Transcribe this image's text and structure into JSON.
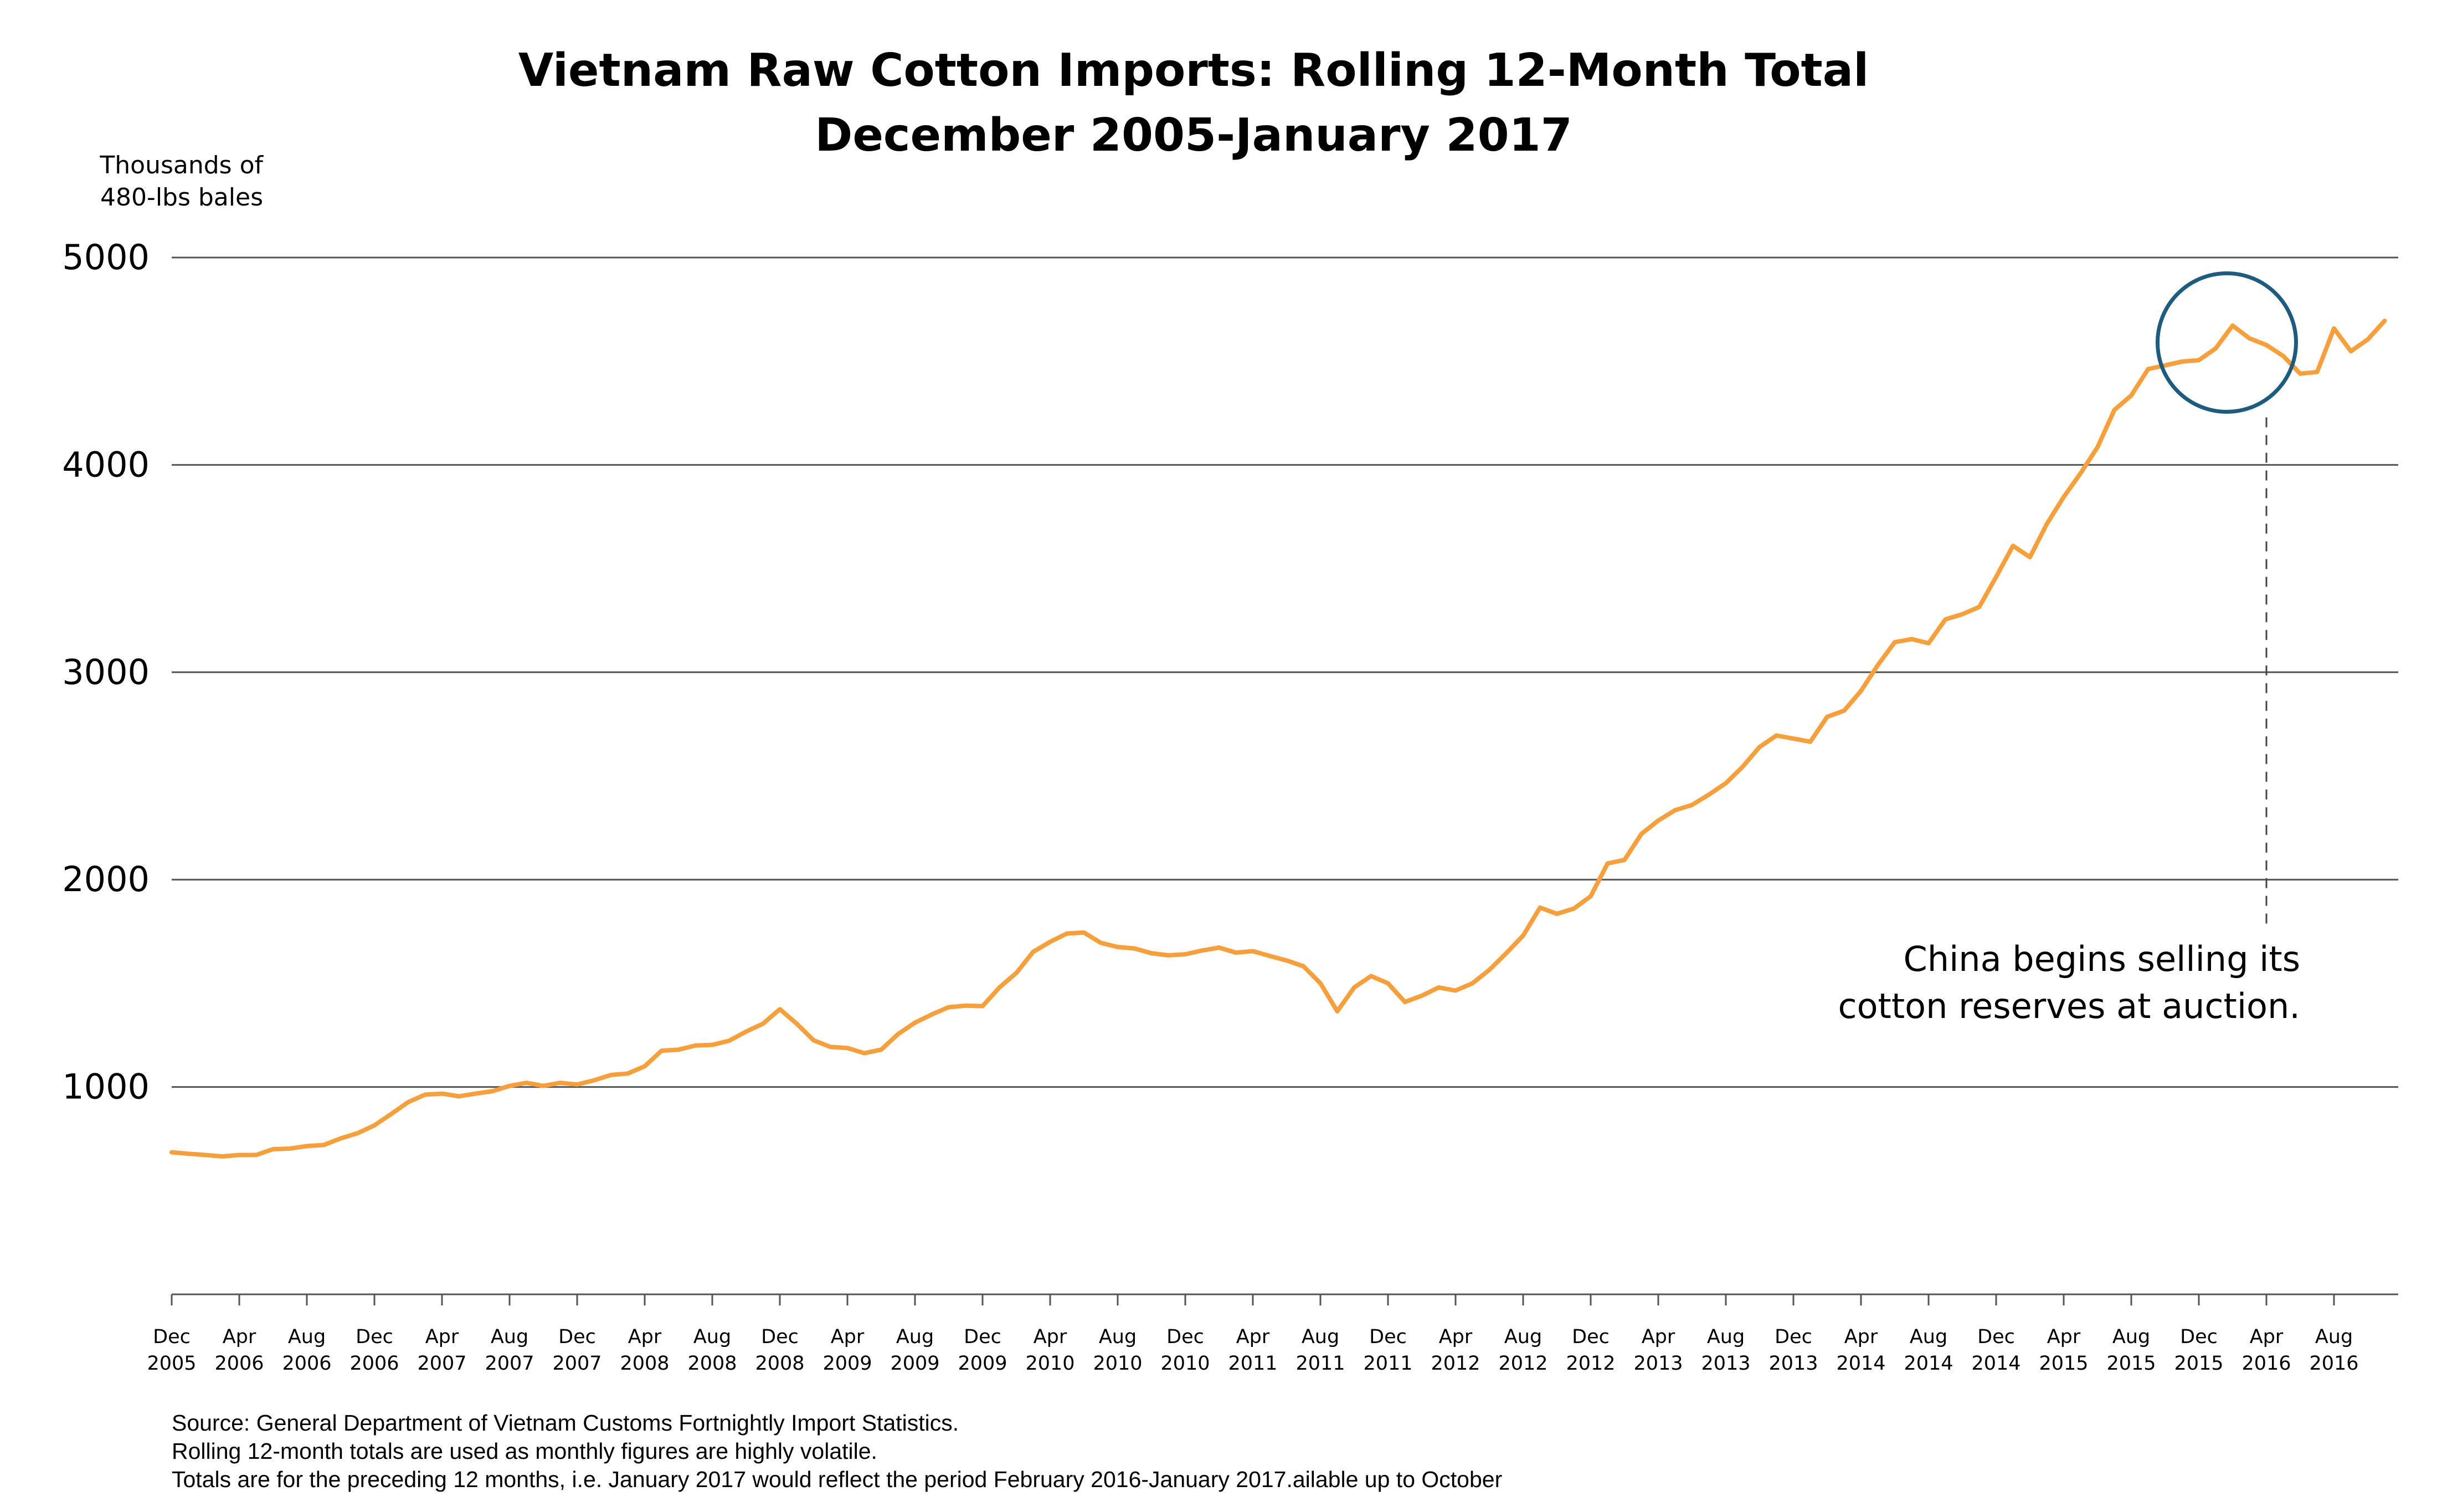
{
  "chart_data": {
    "type": "line",
    "title": "Vietnam Raw Cotton Imports: Rolling 12-Month Total",
    "subtitle": "December 2005-January 2017",
    "ylabel_lines": [
      "Thousands of",
      "480-lbs bales"
    ],
    "ylim": [
      0,
      5000
    ],
    "yticks": [
      "1000",
      "2000",
      "3000",
      "4000",
      "5000"
    ],
    "grid": true,
    "line_color": "#F5A03C",
    "highlight_color": "#1D5C7E",
    "xticks": [
      {
        "month": "Dec",
        "year": "2005"
      },
      {
        "month": "Apr",
        "year": "2006"
      },
      {
        "month": "Aug",
        "year": "2006"
      },
      {
        "month": "Dec",
        "year": "2006"
      },
      {
        "month": "Apr",
        "year": "2007"
      },
      {
        "month": "Aug",
        "year": "2007"
      },
      {
        "month": "Dec",
        "year": "2007"
      },
      {
        "month": "Apr",
        "year": "2008"
      },
      {
        "month": "Aug",
        "year": "2008"
      },
      {
        "month": "Dec",
        "year": "2008"
      },
      {
        "month": "Apr",
        "year": "2009"
      },
      {
        "month": "Aug",
        "year": "2009"
      },
      {
        "month": "Dec",
        "year": "2009"
      },
      {
        "month": "Apr",
        "year": "2010"
      },
      {
        "month": "Aug",
        "year": "2010"
      },
      {
        "month": "Dec",
        "year": "2010"
      },
      {
        "month": "Apr",
        "year": "2011"
      },
      {
        "month": "Aug",
        "year": "2011"
      },
      {
        "month": "Dec",
        "year": "2011"
      },
      {
        "month": "Apr",
        "year": "2012"
      },
      {
        "month": "Aug",
        "year": "2012"
      },
      {
        "month": "Dec",
        "year": "2012"
      },
      {
        "month": "Apr",
        "year": "2013"
      },
      {
        "month": "Aug",
        "year": "2013"
      },
      {
        "month": "Dec",
        "year": "2013"
      },
      {
        "month": "Apr",
        "year": "2014"
      },
      {
        "month": "Aug",
        "year": "2014"
      },
      {
        "month": "Dec",
        "year": "2014"
      },
      {
        "month": "Apr",
        "year": "2015"
      },
      {
        "month": "Aug",
        "year": "2015"
      },
      {
        "month": "Dec",
        "year": "2015"
      },
      {
        "month": "Apr",
        "year": "2016"
      },
      {
        "month": "Aug",
        "year": "2016"
      }
    ],
    "x_start": "2005-12",
    "x_end": "2017-01",
    "values": [
      685,
      678,
      672,
      665,
      672,
      672,
      700,
      703,
      715,
      720,
      752,
      777,
      815,
      870,
      927,
      963,
      968,
      955,
      968,
      980,
      1005,
      1020,
      1005,
      1020,
      1012,
      1032,
      1058,
      1065,
      1100,
      1175,
      1180,
      1200,
      1203,
      1223,
      1267,
      1305,
      1375,
      1305,
      1225,
      1193,
      1188,
      1163,
      1180,
      1255,
      1310,
      1350,
      1385,
      1392,
      1390,
      1480,
      1550,
      1652,
      1700,
      1740,
      1745,
      1695,
      1675,
      1668,
      1645,
      1635,
      1640,
      1658,
      1672,
      1648,
      1655,
      1632,
      1610,
      1582,
      1500,
      1365,
      1480,
      1535,
      1500,
      1410,
      1440,
      1480,
      1465,
      1500,
      1565,
      1645,
      1730,
      1865,
      1835,
      1860,
      1920,
      2078,
      2095,
      2220,
      2285,
      2335,
      2360,
      2410,
      2465,
      2545,
      2640,
      2695,
      2680,
      2665,
      2785,
      2815,
      2910,
      3035,
      3145,
      3160,
      3140,
      3255,
      3280,
      3315,
      3460,
      3610,
      3555,
      3715,
      3845,
      3960,
      4085,
      4265,
      4335,
      4462,
      4480,
      4498,
      4505,
      4562,
      4672,
      4610,
      4578,
      4525,
      4440,
      4448,
      4658,
      4548,
      4605,
      4695
    ],
    "annotation": {
      "lines": [
        "China begins selling its",
        "cotton reserves at auction."
      ],
      "event": "Apr 2016"
    }
  },
  "source_lines": [
    "Source:  General Department of Vietnam Customs Fortnightly Import Statistics.",
    "Rolling 12-month totals are used as monthly figures are highly volatile.",
    "Totals are for the preceding 12 months, i.e. January 2017 would reflect the period February 2016-January 2017.ailable up to October"
  ]
}
